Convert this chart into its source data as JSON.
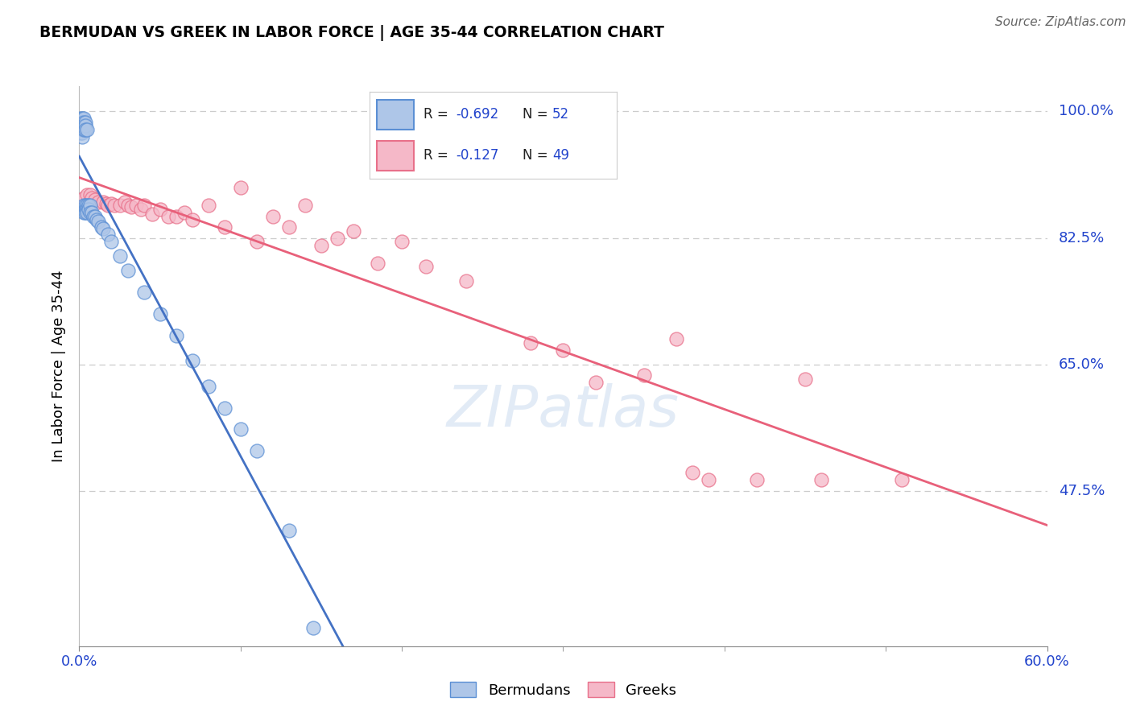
{
  "title": "BERMUDAN VS GREEK IN LABOR FORCE | AGE 35-44 CORRELATION CHART",
  "source": "Source: ZipAtlas.com",
  "ylabel": "In Labor Force | Age 35-44",
  "legend_r_blue": "-0.692",
  "legend_n_blue": "52",
  "legend_r_pink": "-0.127",
  "legend_n_pink": "49",
  "blue_fill": "#aec6e8",
  "blue_edge": "#5b8fd4",
  "pink_fill": "#f5b8c8",
  "pink_edge": "#e8708a",
  "trendline_blue": "#4472c4",
  "trendline_pink": "#e8607a",
  "xmin": 0.0,
  "xmax": 0.6,
  "ymin": 0.26,
  "ymax": 1.035,
  "yticks": [
    1.0,
    0.825,
    0.65,
    0.475
  ],
  "ytick_labels": [
    "100.0%",
    "82.5%",
    "65.0%",
    "47.5%"
  ],
  "watermark_color": "#d0dff0",
  "grid_color": "#cccccc",
  "axis_label_color": "#2244cc",
  "bermuda_x": [
    0.001,
    0.001,
    0.001,
    0.001,
    0.001,
    0.002,
    0.002,
    0.002,
    0.002,
    0.002,
    0.002,
    0.003,
    0.003,
    0.003,
    0.003,
    0.003,
    0.003,
    0.004,
    0.004,
    0.004,
    0.004,
    0.004,
    0.004,
    0.005,
    0.005,
    0.005,
    0.005,
    0.006,
    0.006,
    0.007,
    0.007,
    0.008,
    0.009,
    0.01,
    0.011,
    0.012,
    0.014,
    0.015,
    0.018,
    0.02,
    0.025,
    0.03,
    0.04,
    0.05,
    0.06,
    0.07,
    0.08,
    0.09,
    0.1,
    0.11,
    0.13,
    0.145
  ],
  "bermuda_y": [
    0.99,
    0.985,
    0.98,
    0.975,
    0.97,
    0.99,
    0.985,
    0.98,
    0.975,
    0.97,
    0.965,
    0.99,
    0.985,
    0.98,
    0.975,
    0.87,
    0.86,
    0.985,
    0.98,
    0.975,
    0.87,
    0.865,
    0.86,
    0.975,
    0.87,
    0.865,
    0.86,
    0.87,
    0.865,
    0.87,
    0.86,
    0.86,
    0.855,
    0.855,
    0.85,
    0.848,
    0.84,
    0.838,
    0.83,
    0.82,
    0.8,
    0.78,
    0.75,
    0.72,
    0.69,
    0.655,
    0.62,
    0.59,
    0.56,
    0.53,
    0.42,
    0.285
  ],
  "greek_x": [
    0.003,
    0.005,
    0.007,
    0.008,
    0.01,
    0.012,
    0.015,
    0.017,
    0.018,
    0.02,
    0.022,
    0.025,
    0.028,
    0.03,
    0.032,
    0.035,
    0.038,
    0.04,
    0.045,
    0.05,
    0.055,
    0.06,
    0.065,
    0.07,
    0.08,
    0.09,
    0.1,
    0.11,
    0.12,
    0.13,
    0.14,
    0.15,
    0.16,
    0.17,
    0.185,
    0.2,
    0.215,
    0.24,
    0.28,
    0.3,
    0.32,
    0.35,
    0.37,
    0.38,
    0.39,
    0.42,
    0.45,
    0.46,
    0.51
  ],
  "greek_y": [
    0.88,
    0.885,
    0.885,
    0.88,
    0.878,
    0.875,
    0.875,
    0.872,
    0.87,
    0.872,
    0.87,
    0.87,
    0.875,
    0.87,
    0.868,
    0.87,
    0.865,
    0.87,
    0.858,
    0.865,
    0.855,
    0.855,
    0.86,
    0.85,
    0.87,
    0.84,
    0.895,
    0.82,
    0.855,
    0.84,
    0.87,
    0.815,
    0.825,
    0.835,
    0.79,
    0.82,
    0.785,
    0.765,
    0.68,
    0.67,
    0.625,
    0.635,
    0.685,
    0.5,
    0.49,
    0.49,
    0.63,
    0.49,
    0.49
  ]
}
